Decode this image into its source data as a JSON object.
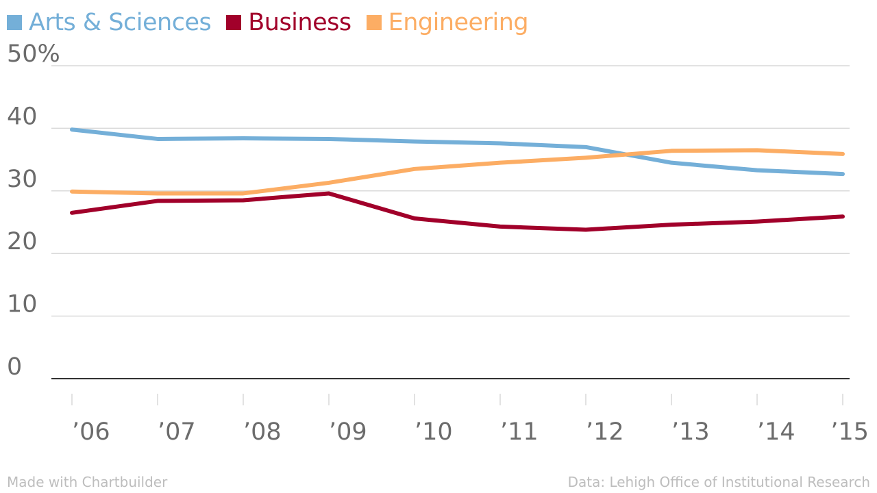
{
  "colors": {
    "grid": "#d9d9d9",
    "axis": "#333333",
    "tick_text": "#6b6b6b",
    "footer": "#bdbdbd"
  },
  "chart_data": {
    "type": "line",
    "title": "",
    "xlabel": "",
    "ylabel": "",
    "x": [
      "’06",
      "’07",
      "’08",
      "’09",
      "’10",
      "’11",
      "’12",
      "’13",
      "’14",
      "’15"
    ],
    "ylim": [
      0,
      50
    ],
    "yticks": [
      0,
      10,
      20,
      30,
      40,
      50
    ],
    "ytick_labels": [
      "0",
      "10",
      "20",
      "30",
      "40",
      "50%"
    ],
    "grid": true,
    "legend_position": "top-left",
    "series": [
      {
        "name": "Arts & Sciences",
        "color": "#74afd8",
        "values": [
          39.8,
          38.3,
          38.4,
          38.3,
          37.9,
          37.6,
          37.0,
          34.5,
          33.3,
          32.7
        ]
      },
      {
        "name": "Business",
        "color": "#a1002a",
        "values": [
          26.5,
          28.4,
          28.5,
          29.6,
          25.6,
          24.3,
          23.8,
          24.6,
          25.1,
          25.9
        ]
      },
      {
        "name": "Engineering",
        "color": "#fcad64",
        "values": [
          29.9,
          29.6,
          29.6,
          31.3,
          33.5,
          34.5,
          35.3,
          36.4,
          36.5,
          35.9
        ]
      }
    ]
  },
  "footer": {
    "left": "Made with Chartbuilder",
    "right": "Data: Lehigh Office of Institutional Research"
  }
}
